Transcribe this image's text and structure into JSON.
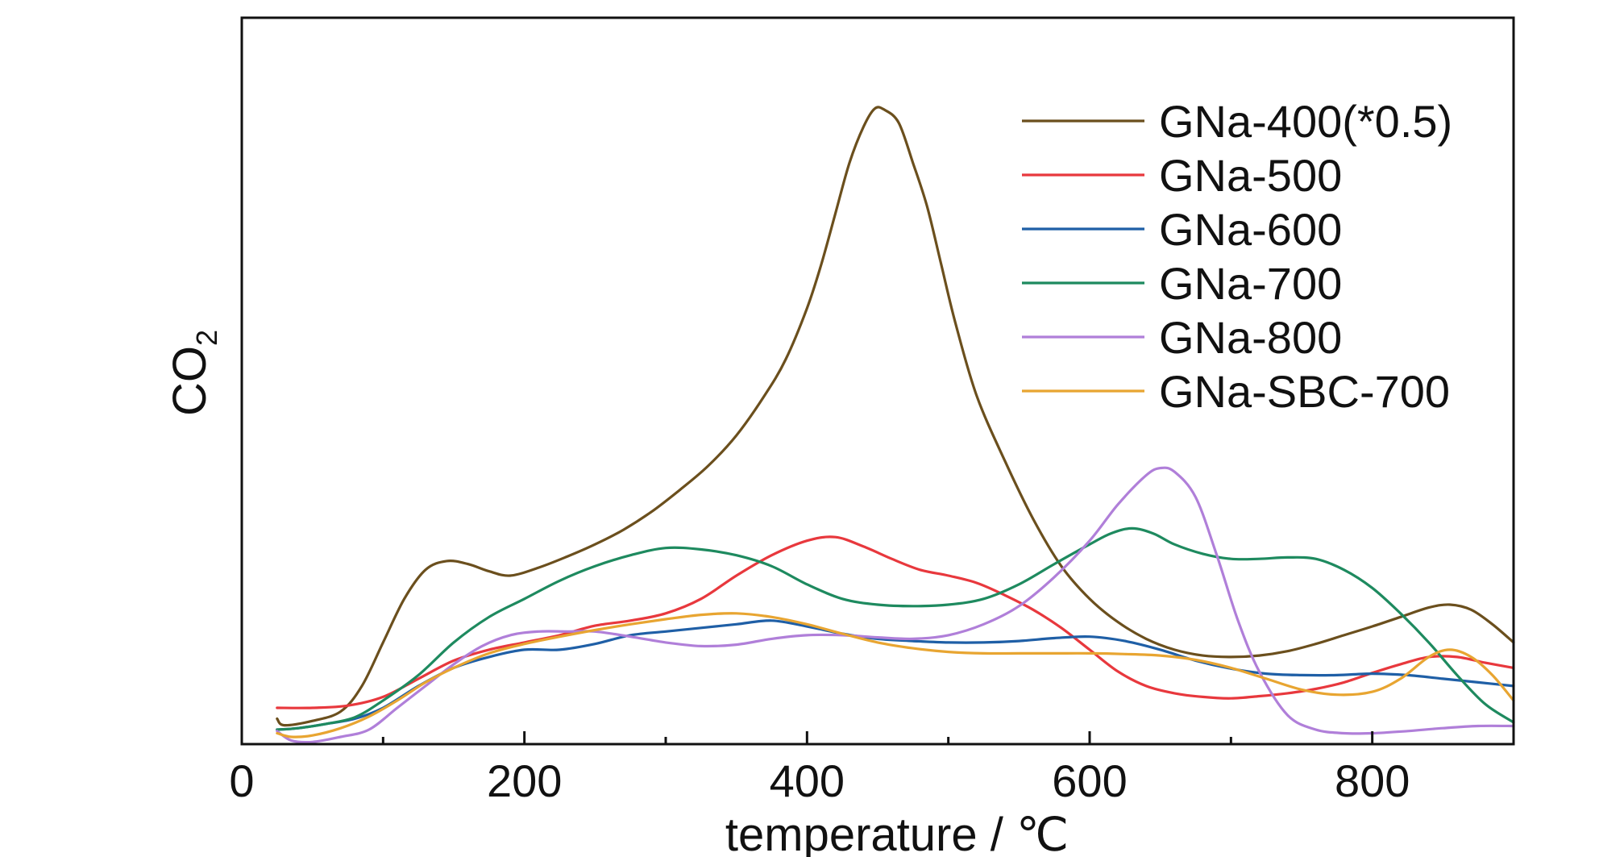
{
  "chart_data": {
    "type": "line",
    "title": "",
    "xlabel": "temperature / ℃",
    "ylabel": "CO",
    "ylabel_subscript": "2",
    "xlim": [
      0,
      900
    ],
    "ylim": [
      0,
      1
    ],
    "x_ticks": [
      0,
      200,
      400,
      600,
      800
    ],
    "x_minor_ticks": [
      100,
      300,
      500,
      700
    ],
    "y_tick_labels": false,
    "grid": false,
    "legend_position": "top-right",
    "series": [
      {
        "name": "GNa-400(*0.5)",
        "color": "#6b4f1d",
        "x": [
          25,
          30,
          50,
          70,
          85,
          100,
          115,
          130,
          145,
          160,
          175,
          190,
          210,
          230,
          250,
          270,
          290,
          310,
          330,
          350,
          370,
          385,
          400,
          410,
          420,
          430,
          440,
          448,
          455,
          465,
          475,
          485,
          495,
          505,
          520,
          540,
          560,
          580,
          600,
          620,
          640,
          660,
          680,
          700,
          720,
          740,
          760,
          780,
          800,
          820,
          840,
          855,
          870,
          885,
          900
        ],
        "y": [
          0.035,
          0.026,
          0.032,
          0.045,
          0.08,
          0.14,
          0.2,
          0.24,
          0.252,
          0.248,
          0.238,
          0.232,
          0.243,
          0.258,
          0.275,
          0.295,
          0.32,
          0.35,
          0.383,
          0.425,
          0.48,
          0.53,
          0.6,
          0.66,
          0.73,
          0.8,
          0.85,
          0.875,
          0.873,
          0.855,
          0.8,
          0.74,
          0.66,
          0.58,
          0.48,
          0.39,
          0.31,
          0.245,
          0.2,
          0.168,
          0.145,
          0.13,
          0.122,
          0.12,
          0.122,
          0.128,
          0.138,
          0.15,
          0.162,
          0.175,
          0.188,
          0.192,
          0.185,
          0.165,
          0.14
        ]
      },
      {
        "name": "GNa-500",
        "color": "#e8383d",
        "x": [
          25,
          50,
          75,
          100,
          125,
          150,
          175,
          200,
          225,
          250,
          275,
          300,
          325,
          350,
          375,
          400,
          420,
          440,
          460,
          480,
          500,
          520,
          540,
          560,
          580,
          600,
          620,
          640,
          660,
          680,
          700,
          720,
          740,
          760,
          780,
          800,
          820,
          840,
          860,
          880,
          900
        ],
        "y": [
          0.05,
          0.05,
          0.053,
          0.065,
          0.09,
          0.115,
          0.13,
          0.14,
          0.15,
          0.163,
          0.17,
          0.18,
          0.2,
          0.232,
          0.26,
          0.28,
          0.285,
          0.272,
          0.255,
          0.24,
          0.232,
          0.222,
          0.205,
          0.185,
          0.16,
          0.13,
          0.1,
          0.08,
          0.07,
          0.065,
          0.063,
          0.066,
          0.07,
          0.076,
          0.085,
          0.098,
          0.11,
          0.12,
          0.12,
          0.112,
          0.105
        ]
      },
      {
        "name": "GNa-600",
        "color": "#1f5fa6",
        "x": [
          25,
          40,
          60,
          80,
          100,
          125,
          150,
          175,
          200,
          225,
          250,
          275,
          300,
          325,
          350,
          375,
          400,
          425,
          450,
          475,
          500,
          525,
          550,
          575,
          600,
          625,
          650,
          675,
          700,
          725,
          750,
          775,
          800,
          825,
          850,
          875,
          900
        ],
        "y": [
          0.02,
          0.022,
          0.028,
          0.035,
          0.05,
          0.08,
          0.105,
          0.12,
          0.13,
          0.13,
          0.138,
          0.15,
          0.155,
          0.16,
          0.165,
          0.17,
          0.162,
          0.152,
          0.145,
          0.142,
          0.14,
          0.14,
          0.142,
          0.146,
          0.148,
          0.142,
          0.13,
          0.115,
          0.104,
          0.097,
          0.095,
          0.095,
          0.097,
          0.095,
          0.09,
          0.085,
          0.08
        ]
      },
      {
        "name": "GNa-700",
        "color": "#1e8a5f",
        "x": [
          25,
          40,
          60,
          80,
          100,
          125,
          150,
          175,
          200,
          225,
          250,
          275,
          300,
          325,
          350,
          375,
          400,
          425,
          450,
          475,
          500,
          525,
          550,
          575,
          600,
          615,
          630,
          645,
          660,
          680,
          700,
          720,
          740,
          760,
          780,
          800,
          820,
          840,
          860,
          880,
          900
        ],
        "y": [
          0.02,
          0.022,
          0.028,
          0.037,
          0.06,
          0.095,
          0.14,
          0.175,
          0.2,
          0.225,
          0.245,
          0.26,
          0.27,
          0.268,
          0.26,
          0.245,
          0.22,
          0.2,
          0.192,
          0.19,
          0.192,
          0.2,
          0.22,
          0.248,
          0.275,
          0.29,
          0.297,
          0.29,
          0.275,
          0.262,
          0.255,
          0.255,
          0.257,
          0.255,
          0.24,
          0.215,
          0.18,
          0.14,
          0.095,
          0.055,
          0.03
        ]
      },
      {
        "name": "GNa-800",
        "color": "#b07fd9",
        "x": [
          25,
          35,
          50,
          70,
          90,
          110,
          130,
          150,
          170,
          190,
          210,
          230,
          250,
          275,
          300,
          325,
          350,
          375,
          400,
          425,
          450,
          475,
          500,
          525,
          550,
          575,
          600,
          620,
          640,
          650,
          660,
          675,
          690,
          705,
          720,
          740,
          760,
          780,
          800,
          825,
          850,
          875,
          900
        ],
        "y": [
          0.018,
          0.005,
          0.003,
          0.01,
          0.02,
          0.05,
          0.08,
          0.11,
          0.135,
          0.15,
          0.155,
          0.155,
          0.155,
          0.148,
          0.14,
          0.135,
          0.137,
          0.145,
          0.15,
          0.15,
          0.147,
          0.145,
          0.15,
          0.165,
          0.19,
          0.23,
          0.28,
          0.33,
          0.37,
          0.38,
          0.375,
          0.34,
          0.26,
          0.17,
          0.1,
          0.04,
          0.02,
          0.015,
          0.015,
          0.018,
          0.022,
          0.025,
          0.025
        ]
      },
      {
        "name": "GNa-SBC-700",
        "color": "#e8a531",
        "x": [
          25,
          35,
          50,
          70,
          90,
          110,
          130,
          150,
          175,
          200,
          225,
          250,
          275,
          300,
          325,
          350,
          375,
          400,
          425,
          450,
          475,
          500,
          525,
          550,
          575,
          600,
          625,
          650,
          675,
          700,
          725,
          750,
          775,
          800,
          820,
          840,
          855,
          870,
          885,
          900
        ],
        "y": [
          0.015,
          0.01,
          0.012,
          0.022,
          0.038,
          0.06,
          0.085,
          0.105,
          0.125,
          0.138,
          0.148,
          0.157,
          0.165,
          0.172,
          0.178,
          0.18,
          0.175,
          0.165,
          0.152,
          0.14,
          0.132,
          0.127,
          0.125,
          0.125,
          0.125,
          0.125,
          0.124,
          0.122,
          0.116,
          0.105,
          0.09,
          0.075,
          0.068,
          0.072,
          0.09,
          0.12,
          0.13,
          0.12,
          0.095,
          0.06
        ]
      }
    ]
  }
}
